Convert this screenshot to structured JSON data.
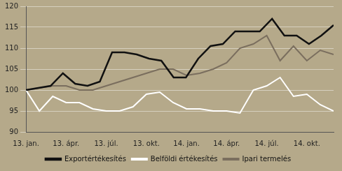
{
  "chart_data": {
    "type": "line",
    "xlim": [
      0,
      23
    ],
    "xticks": [
      {
        "value": 0,
        "label": "13. jan."
      },
      {
        "value": 3,
        "label": "13. ápr."
      },
      {
        "value": 6,
        "label": "13. júl."
      },
      {
        "value": 9,
        "label": "13. okt."
      },
      {
        "value": 12,
        "label": "14. jan."
      },
      {
        "value": 15,
        "label": "14. ápr."
      },
      {
        "value": 18,
        "label": "14. júl."
      },
      {
        "value": 21,
        "label": "14. okt."
      }
    ],
    "ylim": [
      90,
      120
    ],
    "yticks": [
      90,
      95,
      100,
      105,
      110,
      115,
      120
    ],
    "grid": true,
    "legend": "bottom",
    "series": [
      {
        "name": "Ipari termelés",
        "color": "#7a6e5e",
        "x": [
          0,
          1,
          2,
          3,
          4,
          5,
          6,
          7,
          8,
          9,
          10,
          11,
          12,
          13,
          14,
          15,
          16,
          17,
          18,
          19,
          20,
          21,
          22,
          23
        ],
        "values": [
          100,
          100.5,
          101.0,
          101.0,
          100.0,
          100.0,
          101.0,
          102.0,
          103.0,
          104.0,
          105.0,
          105.0,
          103.5,
          104.0,
          105.0,
          106.5,
          110.0,
          111.0,
          113.0,
          107.0,
          110.5,
          107.0,
          109.5,
          108.5
        ]
      },
      {
        "name": "Belföldi értékesítés",
        "color": "#ffffff",
        "x": [
          0,
          1,
          2,
          3,
          4,
          5,
          6,
          7,
          8,
          9,
          10,
          11,
          12,
          13,
          14,
          15,
          16,
          17,
          18,
          19,
          20,
          21,
          22,
          23
        ],
        "values": [
          100,
          95.0,
          98.5,
          97.0,
          97.0,
          95.5,
          95.0,
          95.0,
          96.0,
          99.0,
          99.5,
          97.0,
          95.5,
          95.5,
          95.0,
          95.0,
          94.5,
          100.0,
          101.0,
          103.0,
          98.5,
          99.0,
          96.5,
          95.0
        ]
      },
      {
        "name": "Exportértékesítés",
        "color": "#111111",
        "x": [
          0,
          0.92,
          1.84,
          2.76,
          3.68,
          4.6,
          5.52,
          6.44,
          7.36,
          8.28,
          9.2,
          10.12,
          11.04,
          11.96,
          12.88,
          13.8,
          14.72,
          15.64,
          16.56,
          17.48,
          18.4,
          19.32,
          20.24,
          21.16,
          22.08,
          23
        ],
        "values": [
          100,
          100.5,
          101.0,
          104.0,
          101.5,
          101.0,
          102.0,
          109.0,
          109.0,
          108.5,
          107.5,
          107.0,
          103.0,
          103.0,
          107.5,
          110.5,
          111.0,
          114.0,
          114.0,
          114.0,
          117.0,
          113.0,
          113.0,
          111.0,
          113.0,
          115.5
        ]
      }
    ]
  }
}
